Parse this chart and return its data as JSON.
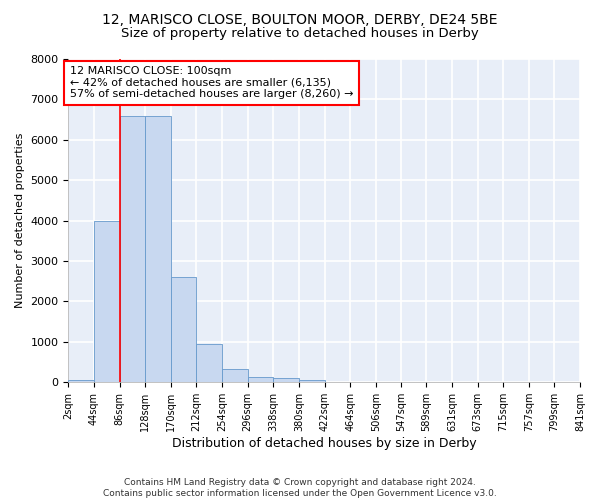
{
  "title": "12, MARISCO CLOSE, BOULTON MOOR, DERBY, DE24 5BE",
  "subtitle": "Size of property relative to detached houses in Derby",
  "xlabel": "Distribution of detached houses by size in Derby",
  "ylabel": "Number of detached properties",
  "bin_edges": [
    2,
    44,
    86,
    128,
    170,
    212,
    254,
    296,
    338,
    380,
    422,
    464,
    506,
    547,
    589,
    631,
    673,
    715,
    757,
    799,
    841
  ],
  "bar_heights": [
    50,
    4000,
    6600,
    6600,
    2600,
    950,
    330,
    140,
    100,
    50,
    0,
    0,
    0,
    0,
    0,
    0,
    0,
    0,
    0,
    0
  ],
  "bar_color": "#c8d8f0",
  "bar_edge_color": "#6699cc",
  "vline_x": 86,
  "vline_color": "red",
  "annotation_text": "12 MARISCO CLOSE: 100sqm\n← 42% of detached houses are smaller (6,135)\n57% of semi-detached houses are larger (8,260) →",
  "annotation_box_color": "red",
  "annotation_box_facecolor": "white",
  "ylim": [
    0,
    8000
  ],
  "yticks": [
    0,
    1000,
    2000,
    3000,
    4000,
    5000,
    6000,
    7000,
    8000
  ],
  "tick_labels": [
    "2sqm",
    "44sqm",
    "86sqm",
    "128sqm",
    "170sqm",
    "212sqm",
    "254sqm",
    "296sqm",
    "338sqm",
    "380sqm",
    "422sqm",
    "464sqm",
    "506sqm",
    "547sqm",
    "589sqm",
    "631sqm",
    "673sqm",
    "715sqm",
    "757sqm",
    "799sqm",
    "841sqm"
  ],
  "background_color": "#e8eef8",
  "grid_color": "white",
  "footer_text": "Contains HM Land Registry data © Crown copyright and database right 2024.\nContains public sector information licensed under the Open Government Licence v3.0.",
  "title_fontsize": 10,
  "subtitle_fontsize": 9.5,
  "annotation_fontsize": 8,
  "ylabel_fontsize": 8,
  "xlabel_fontsize": 9,
  "footer_fontsize": 6.5
}
